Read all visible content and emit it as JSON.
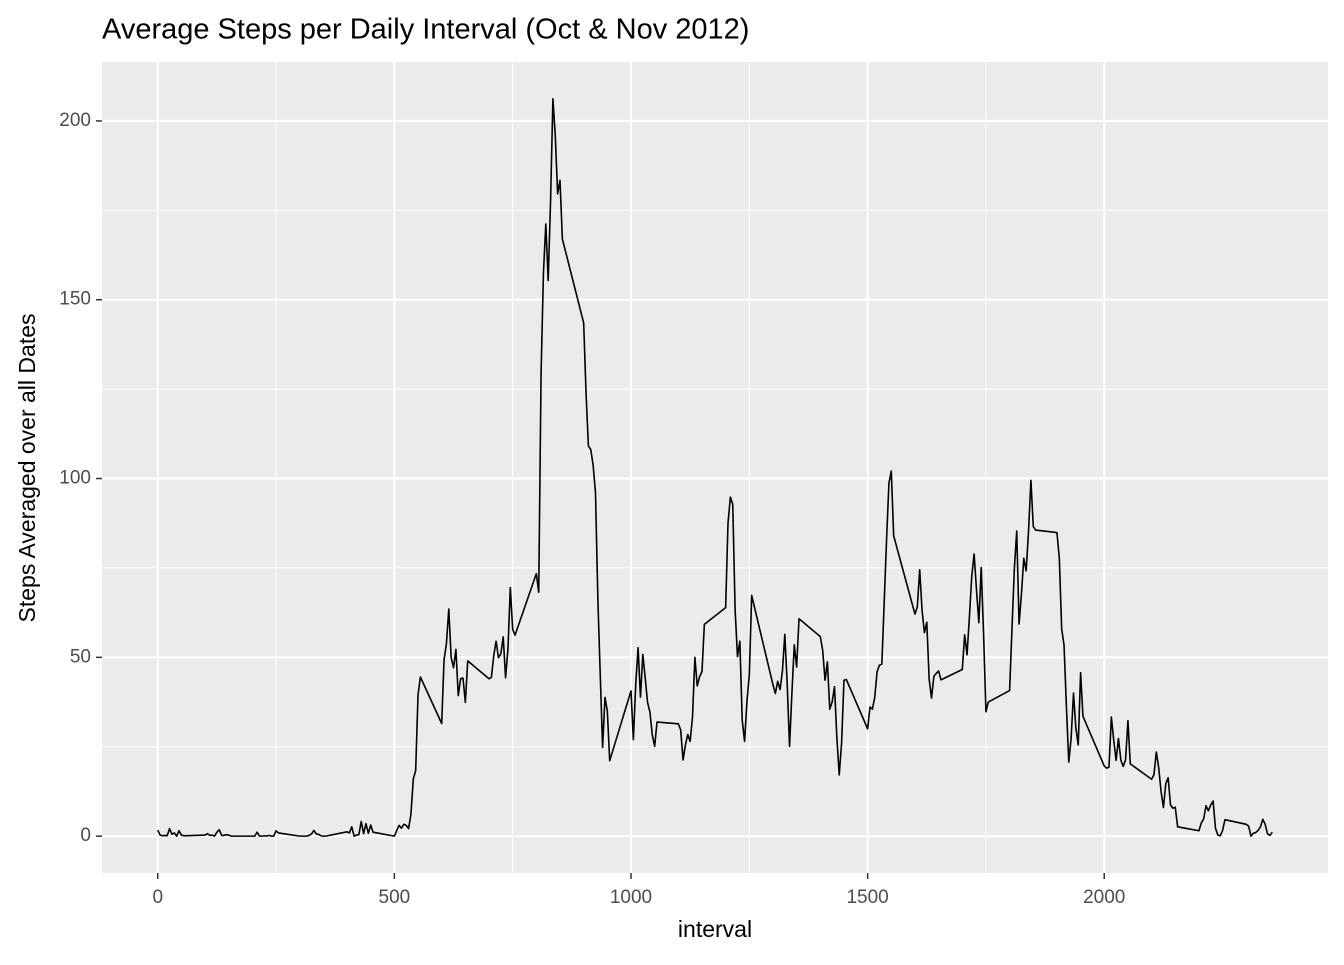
{
  "chart_data": {
    "type": "line",
    "title": "Average Steps per Daily Interval (Oct & Nov 2012)",
    "x_label": "interval",
    "y_label": "Steps Averaged over all Dates",
    "color": "#000000",
    "grid": true,
    "xlim": [
      -117.75,
      2472.75
    ],
    "ylim": [
      -10.31,
      216.48
    ],
    "xticks": [
      0,
      500,
      1000,
      1500,
      2000
    ],
    "yticks": [
      0,
      50,
      100,
      150,
      200
    ],
    "x": [
      0,
      5,
      10,
      15,
      20,
      25,
      30,
      35,
      40,
      45,
      50,
      55,
      100,
      105,
      110,
      115,
      120,
      125,
      130,
      135,
      140,
      145,
      150,
      155,
      200,
      205,
      210,
      215,
      220,
      225,
      230,
      235,
      240,
      245,
      250,
      255,
      300,
      305,
      310,
      315,
      320,
      325,
      330,
      335,
      340,
      345,
      350,
      355,
      400,
      405,
      410,
      415,
      420,
      425,
      430,
      435,
      440,
      445,
      450,
      455,
      500,
      505,
      510,
      515,
      520,
      525,
      530,
      535,
      540,
      545,
      550,
      555,
      600,
      605,
      610,
      615,
      620,
      625,
      630,
      635,
      640,
      645,
      650,
      655,
      700,
      705,
      710,
      715,
      720,
      725,
      730,
      735,
      740,
      745,
      750,
      755,
      800,
      805,
      810,
      815,
      820,
      825,
      830,
      835,
      840,
      845,
      850,
      855,
      900,
      905,
      910,
      915,
      920,
      925,
      930,
      935,
      940,
      945,
      950,
      955,
      1000,
      1005,
      1010,
      1015,
      1020,
      1025,
      1030,
      1035,
      1040,
      1045,
      1050,
      1055,
      1100,
      1105,
      1110,
      1115,
      1120,
      1125,
      1130,
      1135,
      1140,
      1145,
      1150,
      1155,
      1200,
      1205,
      1210,
      1215,
      1220,
      1225,
      1230,
      1235,
      1240,
      1245,
      1250,
      1255,
      1300,
      1305,
      1310,
      1315,
      1320,
      1325,
      1330,
      1335,
      1340,
      1345,
      1350,
      1355,
      1400,
      1405,
      1410,
      1415,
      1420,
      1425,
      1430,
      1435,
      1440,
      1445,
      1450,
      1455,
      1500,
      1505,
      1510,
      1515,
      1520,
      1525,
      1530,
      1535,
      1540,
      1545,
      1550,
      1555,
      1600,
      1605,
      1610,
      1615,
      1620,
      1625,
      1630,
      1635,
      1640,
      1645,
      1650,
      1655,
      1700,
      1705,
      1710,
      1715,
      1720,
      1725,
      1730,
      1735,
      1740,
      1745,
      1750,
      1755,
      1800,
      1805,
      1810,
      1815,
      1820,
      1825,
      1830,
      1835,
      1840,
      1845,
      1850,
      1855,
      1900,
      1905,
      1910,
      1915,
      1920,
      1925,
      1930,
      1935,
      1940,
      1945,
      1950,
      1955,
      2000,
      2005,
      2010,
      2015,
      2020,
      2025,
      2030,
      2035,
      2040,
      2045,
      2050,
      2055,
      2100,
      2105,
      2110,
      2115,
      2120,
      2125,
      2130,
      2135,
      2140,
      2145,
      2150,
      2155,
      2200,
      2205,
      2210,
      2215,
      2220,
      2225,
      2230,
      2235,
      2240,
      2245,
      2250,
      2255,
      2300,
      2305,
      2310,
      2315,
      2320,
      2325,
      2330,
      2335,
      2340,
      2345,
      2350,
      2355
    ],
    "values": [
      1.7,
      0.3,
      0.1,
      0.2,
      0.1,
      2.1,
      0.5,
      0.9,
      0,
      1.5,
      0.3,
      0.1,
      0.3,
      0.7,
      0.2,
      0.3,
      0,
      1.1,
      1.8,
      0.2,
      0.2,
      0.4,
      0.3,
      0,
      0,
      0,
      1.1,
      0,
      0,
      0.1,
      0,
      0.2,
      0,
      0,
      1.5,
      0.9,
      0,
      0,
      0,
      0,
      0.2,
      0.6,
      1.6,
      0.6,
      0.5,
      0.1,
      0,
      0,
      1.2,
      0.9,
      2.6,
      0,
      0.3,
      0.4,
      4.1,
      0.7,
      3.5,
      0.8,
      3.1,
      1.1,
      0,
      1.6,
      3.0,
      2.2,
      3.3,
      3.0,
      2.1,
      6.1,
      16.0,
      18.3,
      39.5,
      44.5,
      31.5,
      49.3,
      53.8,
      63.5,
      50.0,
      47.1,
      52.2,
      39.3,
      44.0,
      44.2,
      37.4,
      49.0,
      44.0,
      44.4,
      50.5,
      54.5,
      49.9,
      51.0,
      55.7,
      44.3,
      52.3,
      69.5,
      57.8,
      56.2,
      73.4,
      68.2,
      129.4,
      157.5,
      171.2,
      155.4,
      177.3,
      206.2,
      195.9,
      179.6,
      183.4,
      167.0,
      143.5,
      124.0,
      109.1,
      108.1,
      103.7,
      96.0,
      66.2,
      45.2,
      24.8,
      38.8,
      35.0,
      21.1,
      40.6,
      27.0,
      42.4,
      52.7,
      38.9,
      50.8,
      44.3,
      37.4,
      34.7,
      28.3,
      25.1,
      31.9,
      31.4,
      29.7,
      21.3,
      25.5,
      28.4,
      26.5,
      33.4,
      50.0,
      42.0,
      44.6,
      46.0,
      59.2,
      63.9,
      87.6,
      94.8,
      92.8,
      63.4,
      50.2,
      54.5,
      32.4,
      26.5,
      37.7,
      45.1,
      67.3,
      42.3,
      39.9,
      43.3,
      41.0,
      46.2,
      56.4,
      42.8,
      25.1,
      40.0,
      53.5,
      47.3,
      60.8,
      55.8,
      52.0,
      43.6,
      48.7,
      35.5,
      37.5,
      41.8,
      27.5,
      17.1,
      26.1,
      43.6,
      43.8,
      30.0,
      36.1,
      35.5,
      38.8,
      46.0,
      47.8,
      48.1,
      65.3,
      82.9,
      98.7,
      102.1,
      84.0,
      62.1,
      64.1,
      74.5,
      63.2,
      56.9,
      59.8,
      43.9,
      38.6,
      44.7,
      45.5,
      46.2,
      43.7,
      46.6,
      56.3,
      50.7,
      61.2,
      72.7,
      78.9,
      68.9,
      59.7,
      75.1,
      56.5,
      34.8,
      37.5,
      40.7,
      58.0,
      74.7,
      85.3,
      59.3,
      67.8,
      77.7,
      74.2,
      85.3,
      99.5,
      86.6,
      85.6,
      84.9,
      77.8,
      58.0,
      53.4,
      36.3,
      20.7,
      27.4,
      40.0,
      30.2,
      25.5,
      45.7,
      33.5,
      19.6,
      19.0,
      19.3,
      33.3,
      26.8,
      21.2,
      27.3,
      21.3,
      19.5,
      21.3,
      32.3,
      20.2,
      15.9,
      17.2,
      23.5,
      19.2,
      12.5,
      8.0,
      14.7,
      16.3,
      8.7,
      7.8,
      8.1,
      2.6,
      1.5,
      3.7,
      4.8,
      8.5,
      7.1,
      8.7,
      9.8,
      2.2,
      0.3,
      0.1,
      1.6,
      4.6,
      3.3,
      2.8,
      0,
      0.8,
      1.0,
      1.6,
      2.6,
      4.7,
      3.3,
      0.6,
      0.2,
      1.1
    ]
  }
}
